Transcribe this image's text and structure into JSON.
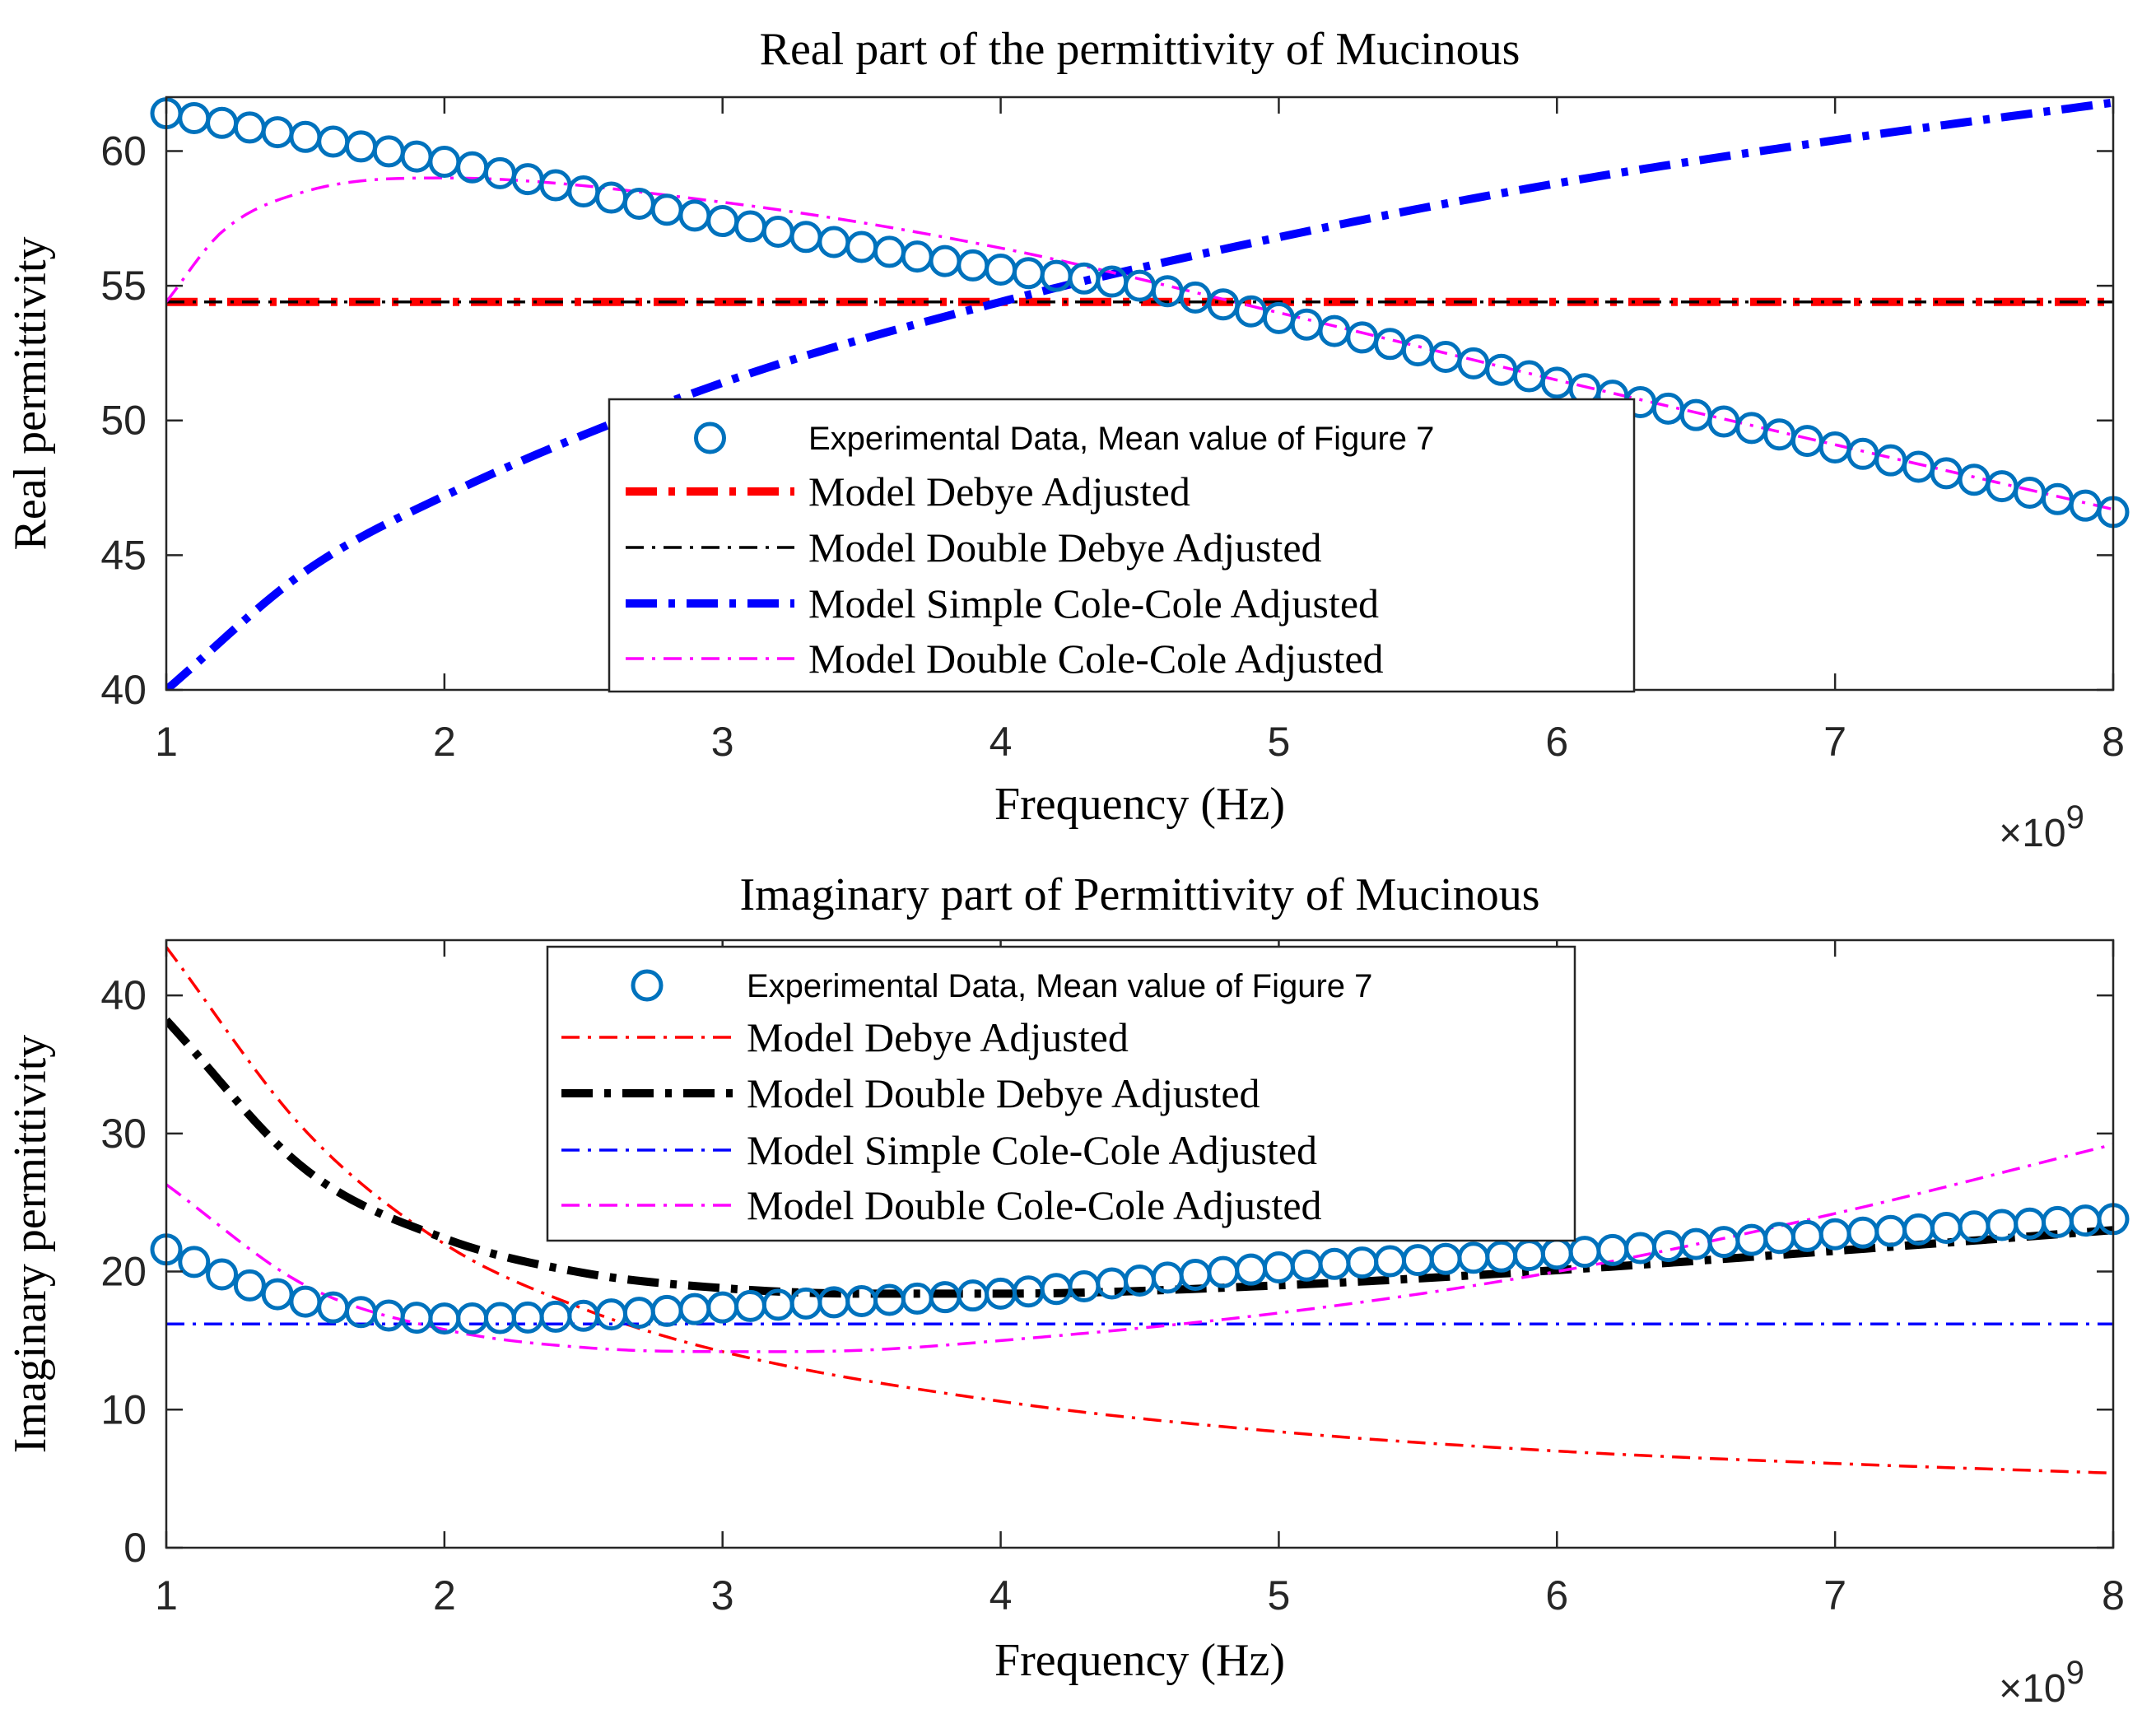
{
  "chart_data": [
    {
      "type": "line",
      "title": "Real part of the permittivity of Mucinous",
      "xlabel": "Frequency (Hz)",
      "ylabel": "Real permittivity",
      "x_multiplier": "×10",
      "x_exponent": "9",
      "xlim": [
        1,
        8
      ],
      "ylim": [
        40,
        62
      ],
      "xticks": [
        1,
        2,
        3,
        4,
        5,
        6,
        7,
        8
      ],
      "yticks": [
        40,
        45,
        50,
        55,
        60
      ],
      "grid": false,
      "legend": "center",
      "experimental": {
        "name": "Experimental Data, Mean value of Figure 7",
        "color": "#0072BD",
        "x_range": [
          1,
          8
        ],
        "count": 71,
        "knots_x": [
          1,
          2,
          3,
          4,
          4.5,
          5,
          6,
          7,
          8
        ],
        "knots_y": [
          61.4,
          59.6,
          57.4,
          55.6,
          55.0,
          53.8,
          51.4,
          49.0,
          46.6
        ]
      },
      "series": [
        {
          "name": "Model Debye Adjusted",
          "color": "#FF0000",
          "dash": "dashdot",
          "width": "thick",
          "kind": "constant",
          "value": 54.4
        },
        {
          "name": "Model Double Debye Adjusted",
          "color": "#000000",
          "dash": "dashdot",
          "width": "thin",
          "kind": "constant",
          "value": 54.4
        },
        {
          "name": "Model Simple Cole-Cole Adjusted",
          "color": "#0000FF",
          "dash": "dashdot",
          "width": "thick",
          "kind": "curve",
          "knots_x": [
            1,
            1.5,
            2,
            3,
            4,
            5,
            6,
            7,
            8
          ],
          "knots_y": [
            40.0,
            44.4,
            47.2,
            51.4,
            54.4,
            56.8,
            58.8,
            60.4,
            61.8
          ]
        },
        {
          "name": "Model Double Cole-Cole Adjusted",
          "color": "#FF00FF",
          "dash": "dashdot",
          "width": "thin",
          "kind": "curve",
          "knots_x": [
            1,
            1.2,
            1.5,
            2,
            3,
            4,
            5,
            6,
            7,
            8
          ],
          "knots_y": [
            54.4,
            57.0,
            58.5,
            59.0,
            58.1,
            56.4,
            54.0,
            51.5,
            49.1,
            46.7
          ]
        }
      ]
    },
    {
      "type": "line",
      "title": "Imaginary part of Permittivity of Mucinous",
      "xlabel": "Frequency (Hz)",
      "ylabel": "Imaginary permittivity",
      "x_multiplier": "×10",
      "x_exponent": "9",
      "xlim": [
        1,
        8
      ],
      "ylim": [
        0,
        44
      ],
      "xticks": [
        1,
        2,
        3,
        4,
        5,
        6,
        7,
        8
      ],
      "yticks": [
        0,
        10,
        20,
        30,
        40
      ],
      "grid": false,
      "legend": "top-center",
      "experimental": {
        "name": "Experimental Data, Mean value of Figure 7",
        "color": "#0072BD",
        "x_range": [
          1,
          8
        ],
        "count": 71,
        "knots_x": [
          1,
          1.3,
          1.6,
          2,
          2.5,
          3,
          4,
          5,
          6,
          7,
          8
        ],
        "knots_y": [
          21.6,
          19.0,
          17.4,
          16.6,
          16.8,
          17.4,
          18.4,
          20.3,
          21.3,
          22.7,
          23.8
        ]
      },
      "series": [
        {
          "name": "Model Debye Adjusted",
          "color": "#FF0000",
          "dash": "dashdot",
          "width": "thin",
          "kind": "curve",
          "knots_x": [
            1,
            1.5,
            2,
            2.5,
            3,
            4,
            5,
            6,
            7,
            8
          ],
          "knots_y": [
            43.5,
            30.2,
            22.0,
            17.3,
            14.2,
            10.6,
            8.4,
            7.0,
            6.1,
            5.4
          ]
        },
        {
          "name": "Model Double Debye Adjusted",
          "color": "#000000",
          "dash": "dashdot",
          "width": "thick",
          "kind": "curve",
          "knots_x": [
            1,
            1.5,
            2,
            2.5,
            3,
            3.5,
            4,
            5,
            6,
            7,
            8
          ],
          "knots_y": [
            38.2,
            27.4,
            22.4,
            19.9,
            18.8,
            18.4,
            18.4,
            19.0,
            20.1,
            21.5,
            23.0
          ]
        },
        {
          "name": "Model Simple Cole-Cole Adjusted",
          "color": "#0000FF",
          "dash": "dashdot",
          "width": "thin",
          "kind": "constant",
          "value": 16.2
        },
        {
          "name": "Model Double Cole-Cole Adjusted",
          "color": "#FF00FF",
          "dash": "dashdot",
          "width": "thin",
          "kind": "curve",
          "knots_x": [
            1,
            1.5,
            2,
            2.5,
            3,
            3.5,
            4,
            5,
            6,
            7,
            8
          ],
          "knots_y": [
            26.3,
            19.0,
            15.8,
            14.5,
            14.2,
            14.3,
            15.0,
            17.0,
            20.0,
            24.2,
            29.2
          ]
        }
      ]
    }
  ]
}
